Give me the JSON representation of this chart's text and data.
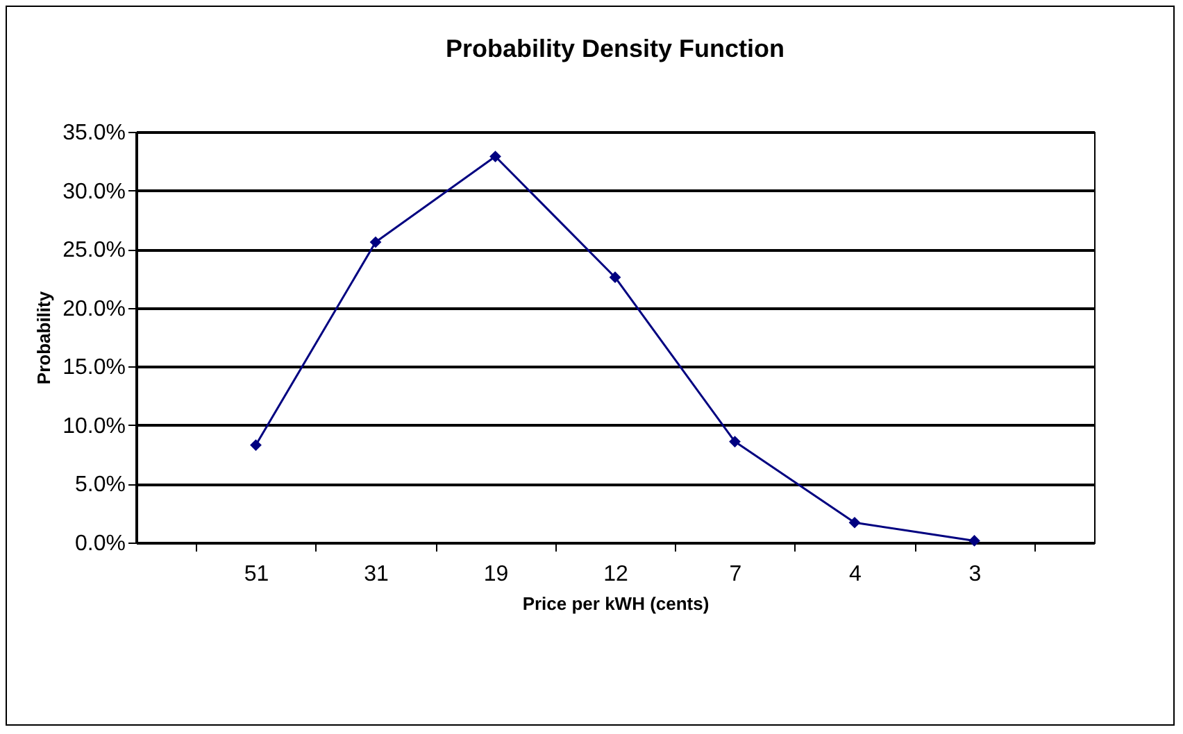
{
  "chart_data": {
    "type": "line",
    "title": "Probability Density Function",
    "xlabel": "Price per kWH (cents)",
    "ylabel": "Probability",
    "categories": [
      "51",
      "31",
      "19",
      "12",
      "7",
      "4",
      "3"
    ],
    "series": [
      {
        "color": "#000080",
        "values": [
          8.3,
          25.6,
          32.9,
          22.6,
          8.6,
          1.7,
          0.15
        ]
      }
    ],
    "ylim": [
      0,
      35
    ],
    "yticks": [
      {
        "value": 0,
        "label": "0.0%"
      },
      {
        "value": 5,
        "label": "5.0%"
      },
      {
        "value": 10,
        "label": "10.0%"
      },
      {
        "value": 15,
        "label": "15.0%"
      },
      {
        "value": 20,
        "label": "20.0%"
      },
      {
        "value": 25,
        "label": "25.0%"
      },
      {
        "value": 30,
        "label": "30.0%"
      },
      {
        "value": 35,
        "label": "35.0%"
      }
    ],
    "grid": "y",
    "marker": "diamond",
    "line_style": "solid",
    "legend": false
  }
}
